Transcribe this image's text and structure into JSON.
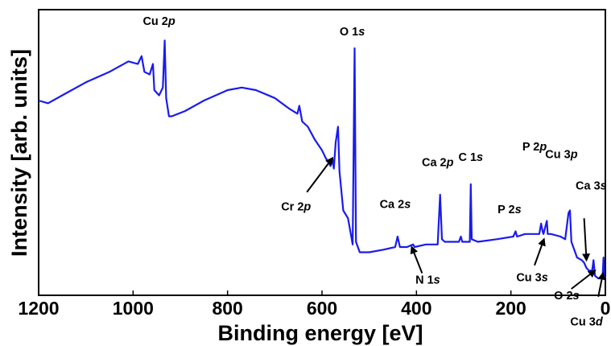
{
  "chart_data": {
    "type": "line",
    "title": "",
    "xlabel": "Binding energy [eV]",
    "ylabel": "Intensity [arb. units]",
    "xlim": [
      1200,
      0
    ],
    "x_reversed": true,
    "ylim": [
      0,
      1
    ],
    "y_ticks_shown": false,
    "x_ticks": [
      1200,
      1000,
      800,
      600,
      400,
      200,
      0
    ],
    "x_tick_labels": [
      "1200",
      "1000",
      "800",
      "600",
      "400",
      "200",
      "0"
    ],
    "grid": false,
    "line_color": "#1a1af0",
    "series": [
      {
        "name": "",
        "points": [
          [
            1200,
            0.72
          ],
          [
            1180,
            0.71
          ],
          [
            1150,
            0.74
          ],
          [
            1100,
            0.79
          ],
          [
            1050,
            0.83
          ],
          [
            1010,
            0.87
          ],
          [
            990,
            0.86
          ],
          [
            982,
            0.89
          ],
          [
            976,
            0.83
          ],
          [
            965,
            0.82
          ],
          [
            958,
            0.86
          ],
          [
            955,
            0.76
          ],
          [
            945,
            0.74
          ],
          [
            937,
            0.77
          ],
          [
            933,
            0.95
          ],
          [
            930,
            0.73
          ],
          [
            924,
            0.66
          ],
          [
            918,
            0.66
          ],
          [
            890,
            0.68
          ],
          [
            850,
            0.72
          ],
          [
            800,
            0.76
          ],
          [
            770,
            0.77
          ],
          [
            740,
            0.76
          ],
          [
            700,
            0.73
          ],
          [
            670,
            0.69
          ],
          [
            652,
            0.67
          ],
          [
            648,
            0.7
          ],
          [
            642,
            0.64
          ],
          [
            630,
            0.62
          ],
          [
            615,
            0.57
          ],
          [
            600,
            0.53
          ],
          [
            592,
            0.5
          ],
          [
            582,
            0.47
          ],
          [
            578,
            0.5
          ],
          [
            575,
            0.46
          ],
          [
            571,
            0.56
          ],
          [
            566,
            0.62
          ],
          [
            563,
            0.45
          ],
          [
            555,
            0.3
          ],
          [
            545,
            0.27
          ],
          [
            540,
            0.22
          ],
          [
            535,
            0.17
          ],
          [
            531,
            0.92
          ],
          [
            528,
            0.18
          ],
          [
            520,
            0.14
          ],
          [
            500,
            0.14
          ],
          [
            470,
            0.15
          ],
          [
            445,
            0.16
          ],
          [
            440,
            0.2
          ],
          [
            435,
            0.16
          ],
          [
            420,
            0.16
          ],
          [
            407,
            0.17
          ],
          [
            404,
            0.16
          ],
          [
            380,
            0.17
          ],
          [
            355,
            0.17
          ],
          [
            350,
            0.36
          ],
          [
            346,
            0.19
          ],
          [
            340,
            0.18
          ],
          [
            320,
            0.18
          ],
          [
            310,
            0.18
          ],
          [
            306,
            0.2
          ],
          [
            303,
            0.18
          ],
          [
            287,
            0.18
          ],
          [
            285,
            0.4
          ],
          [
            283,
            0.19
          ],
          [
            270,
            0.18
          ],
          [
            230,
            0.19
          ],
          [
            195,
            0.2
          ],
          [
            190,
            0.22
          ],
          [
            187,
            0.2
          ],
          [
            170,
            0.21
          ],
          [
            140,
            0.21
          ],
          [
            136,
            0.25
          ],
          [
            133,
            0.22
          ],
          [
            131,
            0.21
          ],
          [
            124,
            0.26
          ],
          [
            122,
            0.21
          ],
          [
            115,
            0.21
          ],
          [
            95,
            0.2
          ],
          [
            85,
            0.19
          ],
          [
            78,
            0.29
          ],
          [
            75,
            0.3
          ],
          [
            72,
            0.18
          ],
          [
            60,
            0.12
          ],
          [
            50,
            0.11
          ],
          [
            45,
            0.1
          ],
          [
            40,
            0.08
          ],
          [
            35,
            0.07
          ],
          [
            28,
            0.07
          ],
          [
            25,
            0.11
          ],
          [
            22,
            0.05
          ],
          [
            15,
            0.04
          ],
          [
            10,
            0.04
          ],
          [
            6,
            0.04
          ],
          [
            4,
            0.12
          ],
          [
            2,
            0.05
          ],
          [
            0,
            0.04
          ]
        ]
      }
    ],
    "annotations": [
      {
        "text": "Cu 2",
        "italic": "p",
        "x": 945,
        "y": 1.01,
        "anchor": "middle"
      },
      {
        "text": "O 1",
        "italic": "s",
        "x": 536,
        "y": 0.97,
        "anchor": "middle"
      },
      {
        "text": "Ca 2",
        "italic": "p",
        "x": 355,
        "y": 0.47,
        "anchor": "middle"
      },
      {
        "text": "C 1",
        "italic": "s",
        "x": 285,
        "y": 0.49,
        "anchor": "middle"
      },
      {
        "text": "P 2",
        "italic": "p",
        "x": 150,
        "y": 0.53,
        "anchor": "middle"
      },
      {
        "text": "Cu 3",
        "italic": "p",
        "x": 93,
        "y": 0.5,
        "anchor": "middle"
      },
      {
        "text": "Ca 2",
        "italic": "s",
        "x": 445,
        "y": 0.31,
        "anchor": "middle"
      },
      {
        "text": "Ca 3",
        "italic": "s",
        "x": 30,
        "y": 0.38,
        "anchor": "middle"
      },
      {
        "text": "P 2",
        "italic": "s",
        "x": 203,
        "y": 0.29,
        "anchor": "middle"
      },
      {
        "text": "Cr 2",
        "italic": "p",
        "x": 655,
        "y": 0.3,
        "anchor": "middle",
        "arrow_to": [
          578,
          0.5
        ],
        "arrow_from": [
          632,
          0.37
        ]
      },
      {
        "text": "N 1",
        "italic": "s",
        "x": 376,
        "y": 0.02,
        "anchor": "middle",
        "arrow_to": [
          410,
          0.16
        ],
        "arrow_from": [
          388,
          0.06
        ]
      },
      {
        "text": "Cu 3",
        "italic": "s",
        "x": 155,
        "y": 0.03,
        "anchor": "middle",
        "arrow_to": [
          130,
          0.19
        ],
        "arrow_from": [
          150,
          0.09
        ]
      },
      {
        "text": "O 2",
        "italic": "s",
        "x": 82,
        "y": -0.04,
        "anchor": "middle",
        "arrow_to": [
          22,
          0.07
        ],
        "arrow_from": [
          72,
          0.0
        ]
      },
      {
        "text": "Cu 3",
        "italic": "d",
        "x": 40,
        "y": -0.14,
        "anchor": "middle",
        "arrow_to": [
          5,
          0.06
        ],
        "arrow_from": [
          15,
          -0.03
        ]
      },
      {
        "text": "",
        "italic": "",
        "x": 0,
        "y": 0,
        "anchor": "middle",
        "arrow_to": [
          40,
          0.11
        ],
        "arrow_from": [
          45,
          0.27
        ]
      }
    ]
  }
}
